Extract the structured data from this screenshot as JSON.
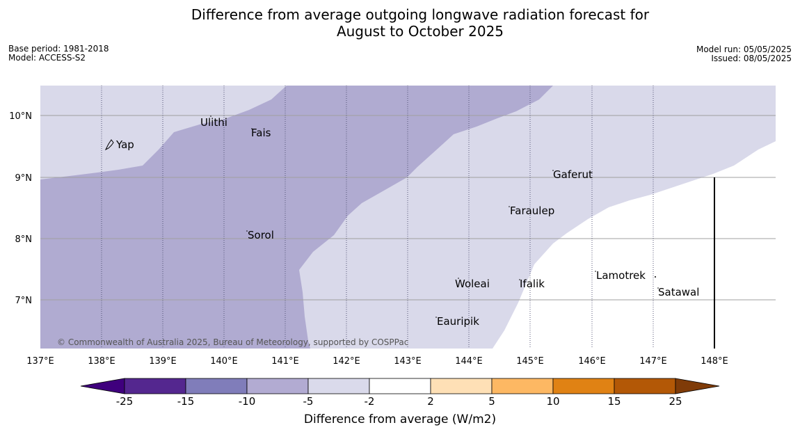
{
  "title_line1": "Difference from average outgoing longwave radiation forecast for",
  "title_line2": "August to October 2025",
  "meta": {
    "base_period": "Base period: 1981-2018",
    "model": "Model: ACCESS-S2",
    "model_run": "Model run: 05/05/2025",
    "issued": "Issued: 08/05/2025"
  },
  "copyright": "© Commonwealth of Australia 2025, Bureau of Meteorology, supported by COSPPac",
  "lon_labels": [
    "137°E",
    "138°E",
    "139°E",
    "140°E",
    "141°E",
    "142°E",
    "143°E",
    "144°E",
    "145°E",
    "146°E",
    "147°E",
    "148°E"
  ],
  "lat_labels": [
    "10°N",
    "9°N",
    "8°N",
    "7°N"
  ],
  "places": [
    "Yap",
    "Ulithi",
    "Fais",
    "Sorol",
    "Gaferut",
    "Faraulep",
    "Woleai",
    "Ifalik",
    "Lamotrek",
    "Satawal",
    "Eauripik"
  ],
  "colorbar": {
    "label": "Difference from average (W/m2)",
    "ticks": [
      "-25",
      "-15",
      "-10",
      "-5",
      "-2",
      "2",
      "5",
      "10",
      "15",
      "25"
    ],
    "colors": [
      "#3f007d",
      "#54278f",
      "#807dba",
      "#b2abd2",
      "#dadaeb",
      "#ffffff",
      "#fee0b6",
      "#fdb863",
      "#e08214",
      "#b35806",
      "#7f3b08"
    ]
  }
}
